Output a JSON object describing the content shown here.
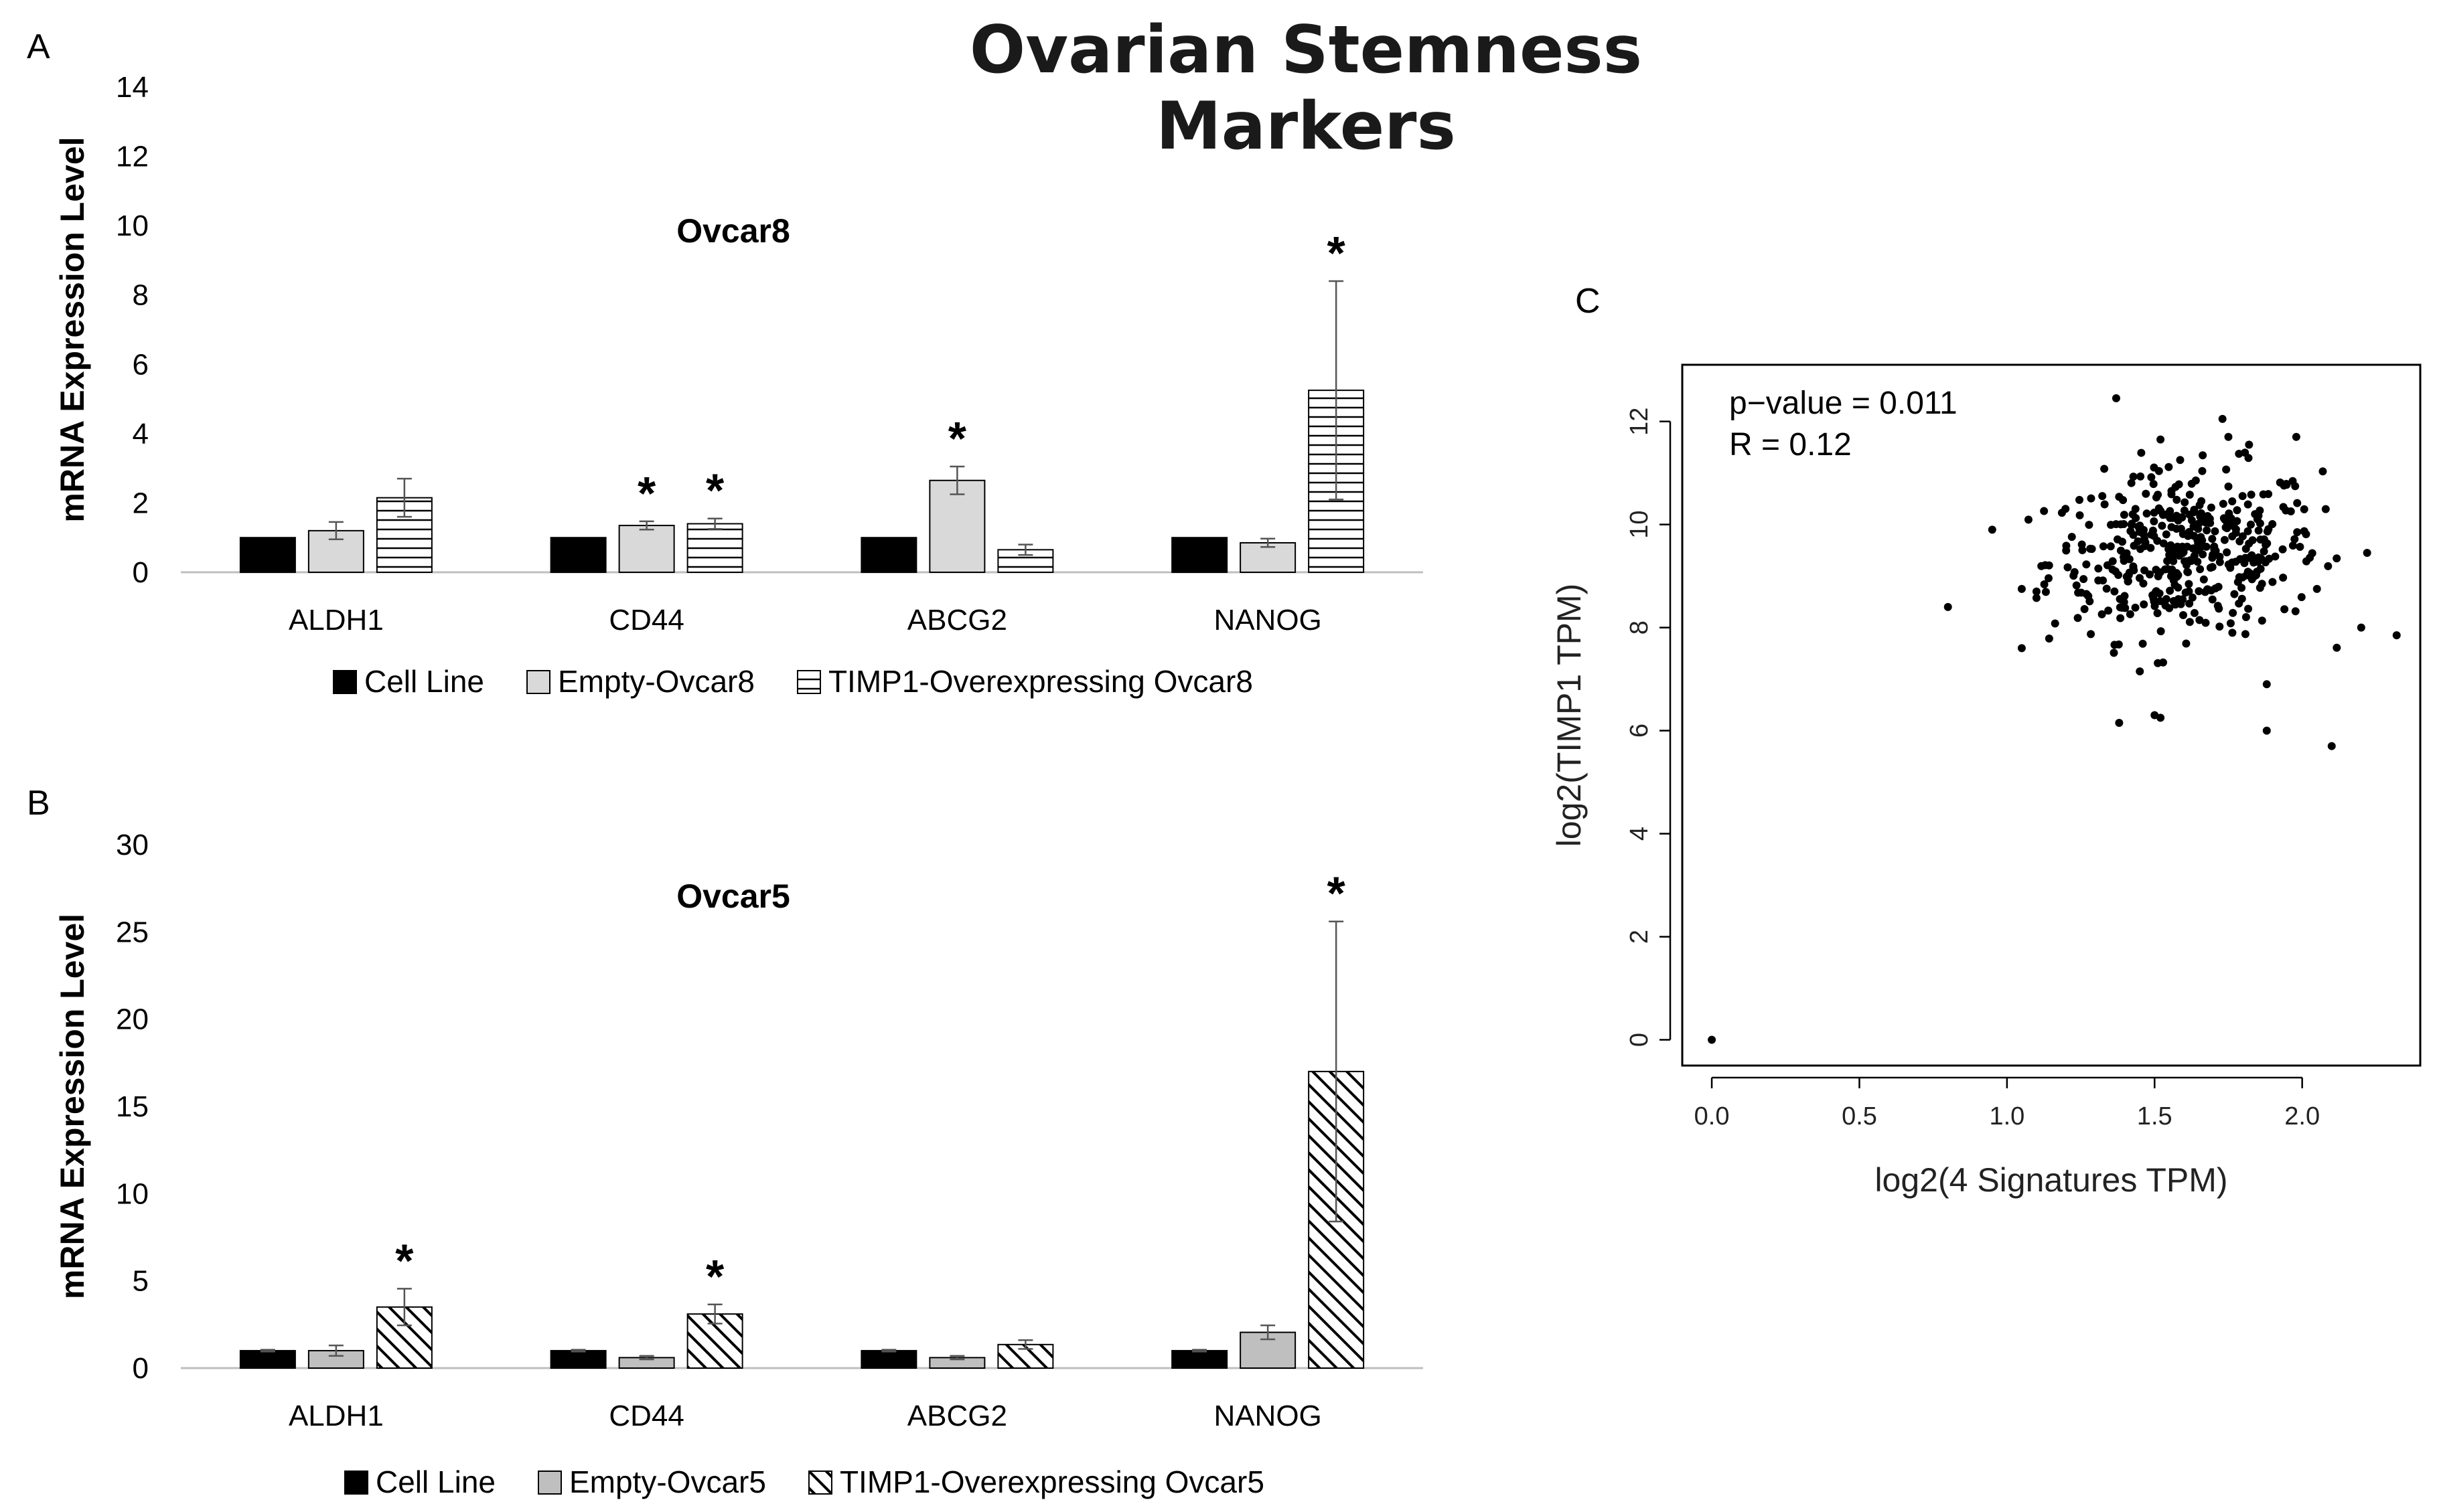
{
  "title": "Ovarian Stemness Markers",
  "panel_letters": [
    "A",
    "B",
    "C"
  ],
  "chart_data": [
    {
      "type": "bar",
      "panel": "A",
      "title": "Ovcar8",
      "ylabel": "mRNA Expression Level",
      "ylim": [
        0,
        14
      ],
      "yticks": [
        0,
        2,
        4,
        6,
        8,
        10,
        12,
        14
      ],
      "categories": [
        "ALDH1",
        "CD44",
        "ABCG2",
        "NANOG"
      ],
      "series": [
        {
          "name": "Cell Line",
          "pattern": "solid-black",
          "values": [
            1,
            1,
            1,
            1
          ],
          "errors": [
            0.02,
            0.02,
            0.02,
            0.02
          ],
          "significant": [
            false,
            false,
            false,
            false
          ]
        },
        {
          "name": "Empty-Ovcar8",
          "pattern": "light-gray",
          "values": [
            1.2,
            1.35,
            2.65,
            0.85
          ],
          "errors": [
            0.25,
            0.12,
            0.4,
            0.12
          ],
          "significant": [
            false,
            true,
            true,
            false
          ]
        },
        {
          "name": "TIMP1-Overexpressing Ovcar8",
          "pattern": "horizontal-lines",
          "values": [
            2.15,
            1.4,
            0.65,
            5.25
          ],
          "errors": [
            0.55,
            0.15,
            0.15,
            3.15
          ],
          "significant": [
            false,
            true,
            false,
            true
          ]
        }
      ],
      "significance_marker": "*"
    },
    {
      "type": "bar",
      "panel": "B",
      "title": "Ovcar5",
      "ylabel": "mRNA Expression Level",
      "ylim": [
        0,
        30
      ],
      "yticks": [
        0,
        5,
        10,
        15,
        20,
        25,
        30
      ],
      "categories": [
        "ALDH1",
        "CD44",
        "ABCG2",
        "NANOG"
      ],
      "series": [
        {
          "name": "Cell Line",
          "pattern": "solid-black",
          "values": [
            1,
            1,
            1,
            1
          ],
          "errors": [
            0.05,
            0.05,
            0.05,
            0.05
          ],
          "significant": [
            false,
            false,
            false,
            false
          ]
        },
        {
          "name": "Empty-Ovcar5",
          "pattern": "mid-gray",
          "values": [
            1,
            0.6,
            0.6,
            2.05
          ],
          "errors": [
            0.3,
            0.1,
            0.1,
            0.4
          ],
          "significant": [
            false,
            false,
            false,
            false
          ]
        },
        {
          "name": "TIMP1-Overexpressing Ovcar5",
          "pattern": "diagonal-lines",
          "values": [
            3.5,
            3.1,
            1.35,
            17.0
          ],
          "errors": [
            1.05,
            0.55,
            0.25,
            8.6
          ],
          "significant": [
            true,
            true,
            false,
            true
          ]
        }
      ],
      "significance_marker": "*"
    },
    {
      "type": "scatter",
      "panel": "C",
      "xlabel": "log2(4 Signatures TPM)",
      "ylabel": "log2(TIMP1 TPM)",
      "xlim": [
        -0.1,
        2.4
      ],
      "ylim": [
        -0.5,
        13.1
      ],
      "xticks": [
        "0.0",
        "0.5",
        "1.0",
        "1.5",
        "2.0"
      ],
      "yticks": [
        "0",
        "2",
        "4",
        "6",
        "8",
        "10",
        "12"
      ],
      "annotations": [
        "p−value = 0.011",
        "R = 0.12"
      ],
      "points": [
        [
          0.0,
          0.0
        ],
        [
          0.8,
          8.4
        ],
        [
          0.95,
          9.9
        ],
        [
          1.37,
          12.45
        ],
        [
          1.38,
          6.15
        ],
        [
          1.5,
          6.3
        ],
        [
          1.52,
          6.25
        ],
        [
          1.88,
          6.0
        ],
        [
          1.88,
          6.9
        ],
        [
          2.1,
          5.7
        ],
        [
          2.32,
          7.85
        ],
        [
          2.22,
          9.45
        ],
        [
          2.2,
          8.0
        ],
        [
          2.05,
          8.75
        ],
        [
          1.98,
          11.7
        ],
        [
          1.82,
          11.55
        ],
        [
          1.75,
          11.7
        ],
        [
          1.73,
          12.05
        ],
        [
          1.05,
          7.6
        ],
        [
          1.05,
          8.75
        ],
        [
          1.1,
          8.7
        ],
        [
          1.52,
          11.65
        ],
        [
          1.45,
          7.15
        ]
      ],
      "cloud": {
        "center_x": 1.6,
        "center_y": 9.45,
        "spread_x": 0.23,
        "spread_y": 0.8,
        "count": 420,
        "x_range": [
          1.0,
          2.2
        ],
        "y_range": [
          7.2,
          11.6
        ]
      }
    }
  ]
}
